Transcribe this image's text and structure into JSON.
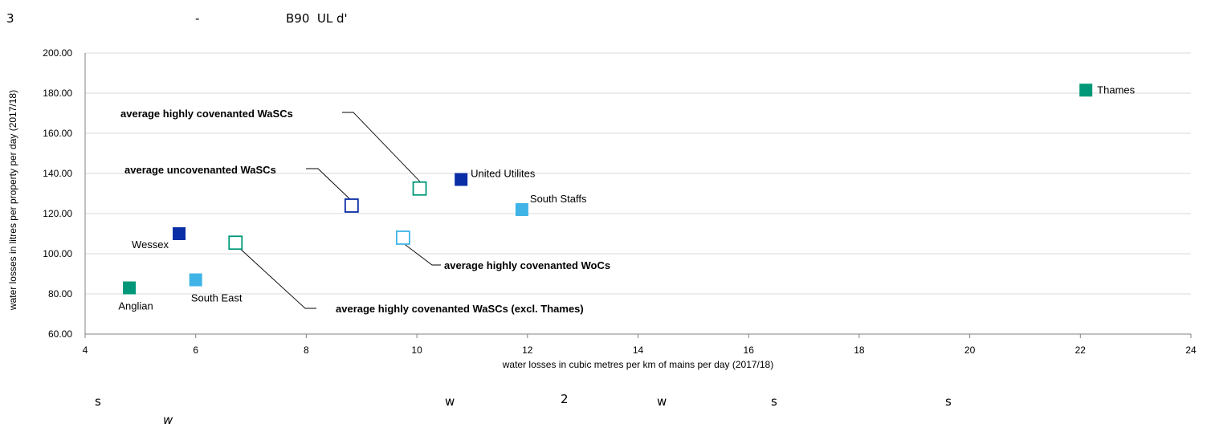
{
  "header_fragments": [
    "3",
    "-",
    "B90  UL d'"
  ],
  "footer_fragments": [
    "s",
    "w",
    "2",
    "w",
    "s",
    "s",
    "w"
  ],
  "chart_data": {
    "type": "scatter",
    "xlabel": "water losses in cubic metres per km of mains per day (2017/18)",
    "ylabel": "water losses in litres per property per day (2017/18)",
    "xlim": [
      4,
      24
    ],
    "ylim": [
      60,
      200
    ],
    "x_ticks": [
      "4",
      "6",
      "8",
      "10",
      "12",
      "14",
      "16",
      "18",
      "20",
      "22",
      "24"
    ],
    "y_ticks": [
      "60.00",
      "80.00",
      "100.00",
      "120.00",
      "140.00",
      "160.00",
      "180.00",
      "200.00"
    ],
    "grid": "horizontal",
    "points": [
      {
        "label": "Thames",
        "x": 22.1,
        "y": 181.5,
        "color": "#009878",
        "filled": true
      },
      {
        "label": "United Utilites",
        "x": 10.8,
        "y": 137.0,
        "color": "#0a2ea6",
        "filled": true
      },
      {
        "label": "South Staffs",
        "x": 11.9,
        "y": 122.0,
        "color": "#40b4e6",
        "filled": true
      },
      {
        "label": "Wessex",
        "x": 5.7,
        "y": 110.0,
        "color": "#0a2ea6",
        "filled": true
      },
      {
        "label": "South East",
        "x": 6.0,
        "y": 87.0,
        "color": "#40b4e6",
        "filled": true
      },
      {
        "label": "Anglian",
        "x": 4.8,
        "y": 83.0,
        "color": "#009878",
        "filled": true
      },
      {
        "label": "",
        "x": 10.05,
        "y": 132.5,
        "color": "#009878",
        "filled": false
      },
      {
        "label": "",
        "x": 8.82,
        "y": 124.0,
        "color": "#0a2ea6",
        "filled": false
      },
      {
        "label": "",
        "x": 9.75,
        "y": 108.0,
        "color": "#40b4e6",
        "filled": false
      },
      {
        "label": "",
        "x": 6.72,
        "y": 105.5,
        "color": "#009878",
        "filled": false
      }
    ],
    "annotations": [
      {
        "text": "average highly covenanted WaSCs",
        "target": 6
      },
      {
        "text": "average uncovenanted WaSCs",
        "target": 7
      },
      {
        "text": "average highly covenanted WoCs",
        "target": 8
      },
      {
        "text": "average highly covenanted WaSCs (excl. Thames)",
        "target": 9
      }
    ]
  }
}
